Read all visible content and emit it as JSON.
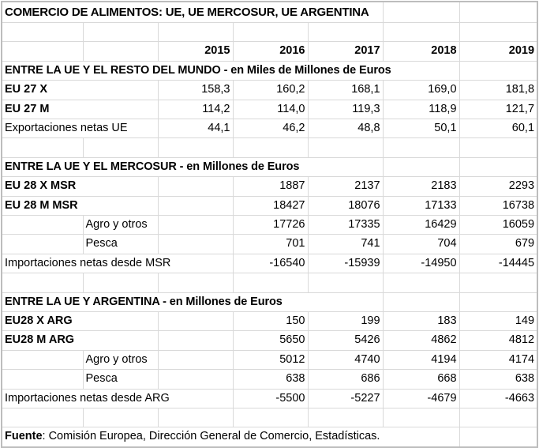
{
  "title": "COMERCIO DE ALIMENTOS: UE, UE MERCOSUR, UE ARGENTINA",
  "years": [
    "2015",
    "2016",
    "2017",
    "2018",
    "2019"
  ],
  "sections": [
    {
      "header": "ENTRE LA UE Y EL RESTO DEL MUNDO - en Miles de Millones de Euros",
      "rows": [
        {
          "label": "EU 27 X",
          "bold": true,
          "indent": false,
          "wide": false,
          "values": [
            "158,3",
            "160,2",
            "168,1",
            "169,0",
            "181,8"
          ]
        },
        {
          "label": "EU 27 M",
          "bold": true,
          "indent": false,
          "wide": false,
          "values": [
            "114,2",
            "114,0",
            "119,3",
            "118,9",
            "121,7"
          ]
        },
        {
          "label": "Exportaciones netas UE",
          "bold": false,
          "indent": false,
          "wide": false,
          "values": [
            "44,1",
            "46,2",
            "48,8",
            "50,1",
            "60,1"
          ]
        }
      ]
    },
    {
      "header": "ENTRE LA UE Y EL MERCOSUR - en Millones de Euros",
      "rows": [
        {
          "label": "EU 28 X MSR",
          "bold": true,
          "indent": false,
          "wide": false,
          "values": [
            "",
            "1887",
            "2137",
            "2183",
            "2293"
          ]
        },
        {
          "label": "EU 28 M MSR",
          "bold": true,
          "indent": false,
          "wide": false,
          "values": [
            "",
            "18427",
            "18076",
            "17133",
            "16738"
          ]
        },
        {
          "label": "Agro y otros",
          "bold": false,
          "indent": true,
          "wide": false,
          "values": [
            "",
            "17726",
            "17335",
            "16429",
            "16059"
          ]
        },
        {
          "label": "Pesca",
          "bold": false,
          "indent": true,
          "wide": false,
          "values": [
            "",
            "701",
            "741",
            "704",
            "679"
          ]
        },
        {
          "label": "Importaciones netas desde MSR",
          "bold": false,
          "indent": false,
          "wide": true,
          "values": [
            "-16540",
            "-15939",
            "-14950",
            "-14445"
          ]
        }
      ]
    },
    {
      "header": "ENTRE LA UE Y ARGENTINA - en Millones de Euros",
      "rows": [
        {
          "label": "EU28 X ARG",
          "bold": true,
          "indent": false,
          "wide": false,
          "values": [
            "",
            "150",
            "199",
            "183",
            "149"
          ]
        },
        {
          "label": "EU28 M ARG",
          "bold": true,
          "indent": false,
          "wide": false,
          "values": [
            "",
            "5650",
            "5426",
            "4862",
            "4812"
          ]
        },
        {
          "label": "Agro y otros",
          "bold": false,
          "indent": true,
          "wide": false,
          "values": [
            "",
            "5012",
            "4740",
            "4194",
            "4174"
          ]
        },
        {
          "label": "Pesca",
          "bold": false,
          "indent": true,
          "wide": false,
          "values": [
            "",
            "638",
            "686",
            "668",
            "638"
          ]
        },
        {
          "label": "Importaciones netas desde ARG",
          "bold": false,
          "indent": false,
          "wide": true,
          "values": [
            "-5500",
            "-5227",
            "-4679",
            "-4663"
          ]
        }
      ]
    }
  ],
  "source": {
    "label": "Fuente",
    "text": ": Comisión Europea, Dirección General de Comercio, Estadísticas."
  }
}
